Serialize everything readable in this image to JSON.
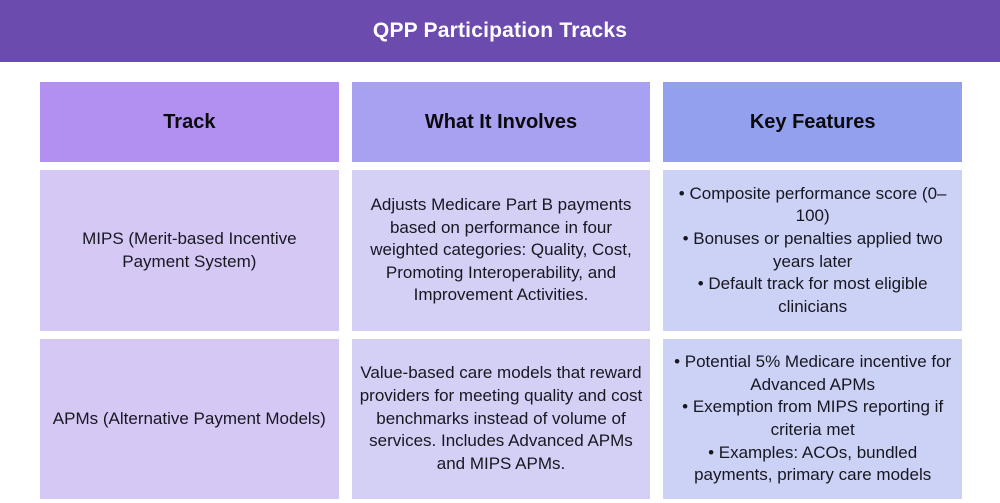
{
  "banner": {
    "title": "QPP Participation Tracks",
    "bg": "#6C4BAE",
    "text_color": "#FFFFFF"
  },
  "table": {
    "headers": [
      {
        "label": "Track",
        "bg": "#B190F1"
      },
      {
        "label": "What It Involves",
        "bg": "#A8A0F0"
      },
      {
        "label": "Key Features",
        "bg": "#93A0EE"
      }
    ],
    "body_colors": {
      "track_col": "#D6C8F5",
      "involves_col": "#D4CFF5",
      "features_col": "#CCD2F5"
    },
    "rows": [
      {
        "track": "MIPS (Merit-based Incentive Payment System)",
        "involves": "Adjusts Medicare Part B payments based on performance in four weighted categories: Quality, Cost, Promoting Interoperability, and Improvement Activities.",
        "features": [
          "Composite performance score (0–100)",
          "Bonuses or penalties applied two years later",
          "Default track for most eligible clinicians"
        ]
      },
      {
        "track": "APMs (Alternative Payment Models)",
        "involves": "Value-based care models that reward providers for meeting quality and cost benchmarks instead of volume of services. Includes Advanced APMs and MIPS APMs.",
        "features": [
          "Potential 5% Medicare incentive for Advanced APMs",
          "Exemption from MIPS reporting if criteria met",
          "Examples: ACOs, bundled payments, primary care models"
        ]
      }
    ]
  }
}
